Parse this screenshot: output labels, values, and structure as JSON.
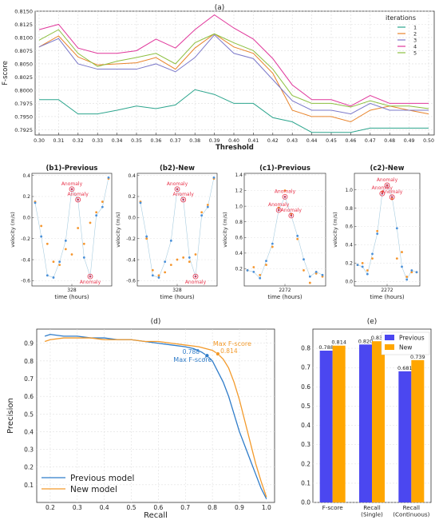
{
  "colors": {
    "iter1": "#2ca58d",
    "iter2": "#e8832a",
    "iter3": "#7b78c9",
    "iter4": "#e0379b",
    "iter5": "#8cbf3f",
    "blue": "#2f7cc9",
    "orange": "#f39a2b",
    "bar_prev": "#4b47f0",
    "bar_new": "#ffa600",
    "scatter_blue": "#4a90d9",
    "scatter_orange": "#f5962e",
    "anomaly": "#e8334a"
  },
  "chart_data": [
    {
      "id": "a",
      "type": "line",
      "panel_label": "(a)",
      "xlabel": "Threshold",
      "ylabel": "F-score",
      "legend_title": "iterations",
      "legend_position": "top-right",
      "x": [
        0.3,
        0.31,
        0.32,
        0.33,
        0.34,
        0.35,
        0.36,
        0.37,
        0.38,
        0.39,
        0.4,
        0.41,
        0.42,
        0.43,
        0.44,
        0.45,
        0.46,
        0.47,
        0.48,
        0.49,
        0.5
      ],
      "x_ticks": [
        "0.30",
        "0.31",
        "0.32",
        "0.33",
        "0.34",
        "0.35",
        "0.36",
        "0.37",
        "0.38",
        "0.39",
        "0.40",
        "0.41",
        "0.42",
        "0.43",
        "0.44",
        "0.45",
        "0.46",
        "0.47",
        "0.48",
        "0.49",
        "0.50"
      ],
      "ylim": [
        0.7915,
        0.815
      ],
      "y_ticks": [
        "0.7925",
        "0.7950",
        "0.7975",
        "0.8000",
        "0.8025",
        "0.8050",
        "0.8075",
        "0.8100",
        "0.8125",
        "0.8150"
      ],
      "series": [
        {
          "name": "1",
          "color_key": "iter1",
          "values": [
            0.7982,
            0.7982,
            0.7955,
            0.7955,
            0.7962,
            0.797,
            0.7965,
            0.7972,
            0.8001,
            0.7992,
            0.7975,
            0.7975,
            0.7948,
            0.794,
            0.792,
            0.792,
            0.792,
            0.7928,
            0.7928,
            0.7928,
            0.7928
          ]
        },
        {
          "name": "2",
          "color_key": "iter2",
          "values": [
            0.8082,
            0.8103,
            0.8063,
            0.8048,
            0.805,
            0.8052,
            0.8062,
            0.804,
            0.808,
            0.8107,
            0.8082,
            0.807,
            0.8032,
            0.7962,
            0.795,
            0.795,
            0.794,
            0.7962,
            0.797,
            0.7962,
            0.7955
          ]
        },
        {
          "name": "3",
          "color_key": "iter3",
          "values": [
            0.8082,
            0.8098,
            0.805,
            0.804,
            0.804,
            0.804,
            0.805,
            0.8035,
            0.8062,
            0.8105,
            0.807,
            0.806,
            0.802,
            0.798,
            0.7962,
            0.7962,
            0.7955,
            0.7975,
            0.7962,
            0.7962,
            0.7962
          ]
        },
        {
          "name": "4",
          "color_key": "iter4",
          "values": [
            0.8115,
            0.8125,
            0.808,
            0.807,
            0.807,
            0.8075,
            0.8097,
            0.808,
            0.8115,
            0.8143,
            0.8118,
            0.8097,
            0.806,
            0.801,
            0.7982,
            0.7982,
            0.797,
            0.799,
            0.7975,
            0.7975,
            0.7975
          ]
        },
        {
          "name": "5",
          "color_key": "iter5",
          "values": [
            0.8095,
            0.8115,
            0.807,
            0.8045,
            0.8055,
            0.8062,
            0.807,
            0.805,
            0.809,
            0.8107,
            0.809,
            0.8075,
            0.804,
            0.799,
            0.7975,
            0.7975,
            0.7968,
            0.798,
            0.797,
            0.797,
            0.7965
          ]
        }
      ]
    },
    {
      "id": "b1",
      "type": "scatter",
      "panel_label": "(b1)-Previous",
      "xlabel": "time (hours)",
      "ylabel": "velocity (m/s)",
      "x_tick": "328",
      "ylim": [
        -0.65,
        0.42
      ],
      "y_ticks": [
        "-0.6",
        "-0.4",
        "-0.2",
        "0.0",
        "0.2",
        "0.4"
      ],
      "annotation": "Anomaly",
      "blue": [
        0.14,
        -0.18,
        -0.55,
        -0.57,
        -0.42,
        -0.22,
        0.27,
        0.17,
        -0.38,
        -0.56,
        0.02,
        0.1,
        0.38
      ],
      "orange": [
        0.15,
        -0.08,
        -0.25,
        -0.42,
        -0.45,
        -0.3,
        -0.35,
        -0.1,
        -0.25,
        -0.05,
        0.05,
        0.15,
        0.37
      ],
      "anomaly_indices": [
        6,
        7,
        9
      ]
    },
    {
      "id": "b2",
      "type": "scatter",
      "panel_label": "(b2)-New",
      "xlabel": "time (hours)",
      "ylabel": "velocity (m/s)",
      "x_tick": "328",
      "ylim": [
        -0.65,
        0.42
      ],
      "y_ticks": [
        "-0.6",
        "-0.4",
        "-0.2",
        "0.0",
        "0.2",
        "0.4"
      ],
      "annotation": "Anomaly",
      "blue": [
        0.14,
        -0.18,
        -0.55,
        -0.57,
        -0.42,
        -0.22,
        0.27,
        0.17,
        -0.38,
        -0.56,
        0.02,
        0.1,
        0.38
      ],
      "orange": [
        0.15,
        -0.2,
        -0.5,
        -0.55,
        -0.52,
        -0.45,
        -0.4,
        -0.38,
        -0.42,
        -0.35,
        0.05,
        0.12,
        0.37
      ],
      "anomaly_indices": [
        6,
        7,
        9
      ]
    },
    {
      "id": "c1",
      "type": "scatter",
      "panel_label": "(c1)-Previous",
      "xlabel": "time (hours)",
      "ylabel": "velocity (m/s)",
      "x_tick": "2272",
      "ylim": [
        -0.02,
        1.42
      ],
      "y_ticks": [
        "0.2",
        "0.4",
        "0.6",
        "0.8",
        "1.0",
        "1.2",
        "1.4"
      ],
      "annotation": "Anomaly",
      "blue": [
        0.18,
        0.16,
        0.08,
        0.3,
        0.52,
        0.95,
        1.12,
        0.88,
        0.62,
        0.32,
        0.1,
        0.16,
        0.12
      ],
      "orange": [
        0.18,
        0.22,
        0.12,
        0.25,
        0.48,
        0.98,
        1.2,
        0.9,
        0.58,
        0.18,
        0.02,
        0.14,
        0.1
      ],
      "anomaly_indices": [
        5,
        6,
        7
      ]
    },
    {
      "id": "c2",
      "type": "scatter",
      "panel_label": "(c2)-New",
      "xlabel": "time (hours)",
      "ylabel": "velocity (m/s)",
      "x_tick": "2272",
      "ylim": [
        -0.05,
        1.18
      ],
      "y_ticks": [
        "0.0",
        "0.2",
        "0.4",
        "0.6",
        "0.8",
        "1.0"
      ],
      "annotation": "Anomaly",
      "blue": [
        0.18,
        0.16,
        0.08,
        0.3,
        0.52,
        0.96,
        1.05,
        0.92,
        0.58,
        0.16,
        0.02,
        0.12,
        0.1
      ],
      "orange": [
        0.18,
        0.2,
        0.12,
        0.25,
        0.55,
        0.98,
        1.05,
        0.9,
        0.25,
        0.32,
        0.05,
        0.1,
        0.1
      ],
      "anomaly_indices": [
        5,
        6,
        7
      ]
    },
    {
      "id": "d",
      "type": "line",
      "panel_label": "(d)",
      "xlabel": "Recall",
      "ylabel": "Precision",
      "xlim": [
        0.15,
        1.03
      ],
      "ylim": [
        0.0,
        0.98
      ],
      "x_ticks": [
        "0.2",
        "0.3",
        "0.4",
        "0.5",
        "0.6",
        "0.7",
        "0.8",
        "0.9",
        "1.0"
      ],
      "y_ticks": [
        "0.1",
        "0.2",
        "0.3",
        "0.4",
        "0.5",
        "0.6",
        "0.7",
        "0.8",
        "0.9"
      ],
      "legend_position": "bottom-left",
      "annotation_label": "Max F-score",
      "series": [
        {
          "name": "Previous model",
          "color_key": "blue",
          "x": [
            0.18,
            0.2,
            0.25,
            0.3,
            0.35,
            0.4,
            0.45,
            0.5,
            0.55,
            0.6,
            0.65,
            0.7,
            0.73,
            0.76,
            0.78,
            0.8,
            0.82,
            0.84,
            0.86,
            0.88,
            0.9,
            0.92,
            0.94,
            0.96,
            0.98,
            1.0
          ],
          "y": [
            0.94,
            0.95,
            0.94,
            0.94,
            0.93,
            0.93,
            0.92,
            0.92,
            0.91,
            0.9,
            0.89,
            0.88,
            0.87,
            0.85,
            0.83,
            0.8,
            0.74,
            0.68,
            0.6,
            0.5,
            0.4,
            0.32,
            0.24,
            0.16,
            0.08,
            0.02
          ],
          "max_point": [
            0.78,
            0.83
          ],
          "max_label": "0.788"
        },
        {
          "name": "New model",
          "color_key": "orange",
          "x": [
            0.18,
            0.2,
            0.25,
            0.3,
            0.35,
            0.4,
            0.45,
            0.5,
            0.55,
            0.6,
            0.65,
            0.7,
            0.75,
            0.8,
            0.82,
            0.84,
            0.86,
            0.88,
            0.9,
            0.92,
            0.94,
            0.96,
            0.98,
            1.0
          ],
          "y": [
            0.91,
            0.92,
            0.93,
            0.93,
            0.93,
            0.92,
            0.92,
            0.92,
            0.91,
            0.91,
            0.9,
            0.89,
            0.88,
            0.86,
            0.84,
            0.81,
            0.76,
            0.68,
            0.58,
            0.46,
            0.34,
            0.22,
            0.12,
            0.03
          ],
          "max_point": [
            0.82,
            0.84
          ],
          "max_label": "0.814"
        }
      ]
    },
    {
      "id": "e",
      "type": "bar",
      "panel_label": "(e)",
      "categories": [
        "F-score",
        "Recall\n(Single)",
        "Recall\n(Continuous)"
      ],
      "ylim": [
        0.0,
        0.9
      ],
      "y_ticks": [
        "0.0",
        "0.1",
        "0.2",
        "0.3",
        "0.4",
        "0.5",
        "0.6",
        "0.7",
        "0.8"
      ],
      "legend_position": "top-right",
      "series": [
        {
          "name": "Previous",
          "color_key": "bar_prev",
          "values": [
            0.788,
            0.82,
            0.681
          ],
          "labels": [
            "0.788",
            "0.820",
            "0.681"
          ]
        },
        {
          "name": "New",
          "color_key": "bar_new",
          "values": [
            0.814,
            0.837,
            0.739
          ],
          "labels": [
            "0.814",
            "0.837",
            "0.739"
          ]
        }
      ]
    }
  ]
}
